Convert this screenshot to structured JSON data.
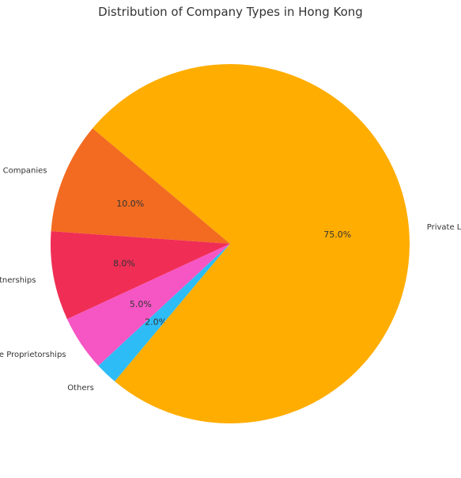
{
  "chart_data": {
    "type": "pie",
    "title": "Distribution of Company Types in Hong Kong",
    "start_angle_deg": 140,
    "direction": "counterclockwise",
    "slices": [
      {
        "label": "Public Limited Companies",
        "value": 10.0,
        "pct_label": "10.0%",
        "color": "#f26b21"
      },
      {
        "label": "Partnerships",
        "value": 8.0,
        "pct_label": "8.0%",
        "color": "#f02e55"
      },
      {
        "label": "Sole Proprietorships",
        "value": 5.0,
        "pct_label": "5.0%",
        "color": "#f556c4"
      },
      {
        "label": "Others",
        "value": 2.0,
        "pct_label": "2.0%",
        "color": "#2ebcf7"
      },
      {
        "label": "Private Limited Companies",
        "value": 75.0,
        "pct_label": "75.0%",
        "color": "#ffad00"
      }
    ]
  }
}
